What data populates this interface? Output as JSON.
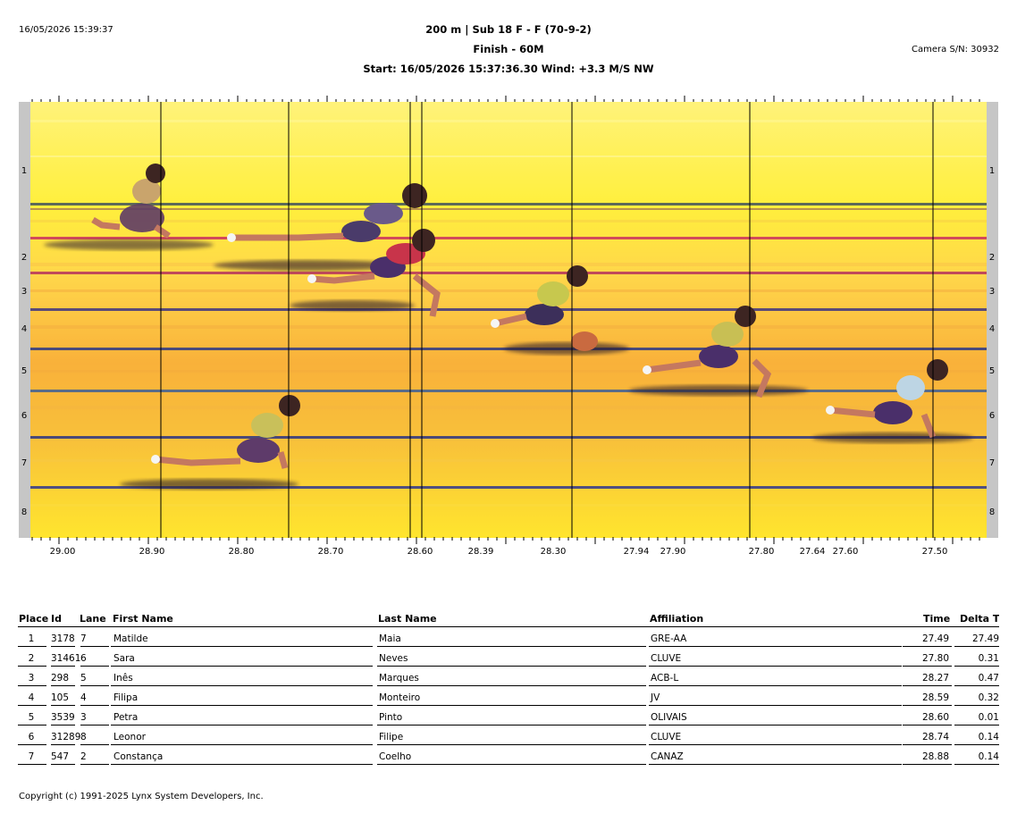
{
  "header": {
    "datetime": "16/05/2026 15:39:37",
    "title": "200 m | Sub 18 F - F (70-9-2)",
    "subtitle": "Finish - 60M",
    "start_line": "Start: 16/05/2026 15:37:36.30    Wind: +3.3 M/S NW",
    "camera": "Camera S/N: 30932"
  },
  "lanes": [
    "1",
    "2",
    "3",
    "4",
    "5",
    "6",
    "7",
    "8"
  ],
  "axis_ticks": [
    "29.00",
    "28.90",
    "28.80",
    "28.70",
    "28.60",
    "28.39",
    "28.30",
    "27.94",
    "27.90",
    "27.80",
    "27.64",
    "27.60",
    "27.50"
  ],
  "table": {
    "headers": {
      "place": "Place",
      "id": "Id",
      "lane": "Lane",
      "first": "First Name",
      "last": "Last Name",
      "affiliation": "Affiliation",
      "time": "Time",
      "delta": "Delta Ti"
    },
    "rows": [
      {
        "place": "1",
        "id": "3178",
        "lane": "7",
        "first": "Matilde",
        "last": "Maia",
        "affiliation": "GRE-AA",
        "time": "27.49",
        "delta": "27.49"
      },
      {
        "place": "2",
        "id": "31461",
        "lane": "6",
        "first": "Sara",
        "last": "Neves",
        "affiliation": "CLUVE",
        "time": "27.80",
        "delta": "0.31"
      },
      {
        "place": "3",
        "id": "298",
        "lane": "5",
        "first": "Inês",
        "last": "Marques",
        "affiliation": "ACB-L",
        "time": "28.27",
        "delta": "0.47"
      },
      {
        "place": "4",
        "id": "105",
        "lane": "4",
        "first": "Filipa",
        "last": "Monteiro",
        "affiliation": "JV",
        "time": "28.59",
        "delta": "0.32"
      },
      {
        "place": "5",
        "id": "3539",
        "lane": "3",
        "first": "Petra",
        "last": "Pinto",
        "affiliation": "OLIVAIS",
        "time": "28.60",
        "delta": "0.01"
      },
      {
        "place": "6",
        "id": "31289",
        "lane": "8",
        "first": "Leonor",
        "last": "Filipe",
        "affiliation": "CLUVE",
        "time": "28.74",
        "delta": "0.14"
      },
      {
        "place": "7",
        "id": "547",
        "lane": "2",
        "first": "Constança",
        "last": "Coelho",
        "affiliation": "CANAZ",
        "time": "28.88",
        "delta": "0.14"
      }
    ]
  },
  "footer": {
    "copyright": "Copyright (c) 1991-2025 Lynx System Developers, Inc."
  }
}
